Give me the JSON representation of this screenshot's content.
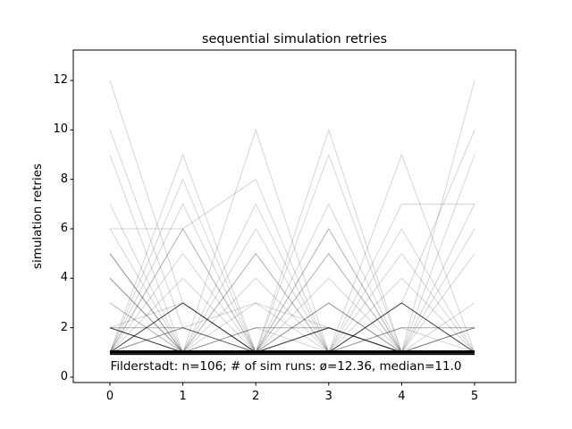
{
  "figure": {
    "title": "sequential simulation retries",
    "y_axis_label": "simulation retries",
    "annotation": "Filderstadt: n=106; # of sim runs: ø=12.36, median=11.0"
  },
  "chart_data": {
    "type": "line",
    "title": "sequential simulation retries",
    "xlabel": "",
    "ylabel": "simulation retries",
    "annotation": "Filderstadt: n=106; # of sim runs: ø=12.36, median=11.0",
    "stats": {
      "place": "Filderstadt",
      "n": 106,
      "mean_sim_runs": 12.36,
      "median_sim_runs": 11.0
    },
    "x": [
      0,
      1,
      2,
      3,
      4,
      5
    ],
    "xticks": [
      0,
      1,
      2,
      3,
      4,
      5
    ],
    "xtick_labels": [
      "0",
      "1",
      "2",
      "3",
      "4",
      "5"
    ],
    "yticks": [
      0,
      2,
      4,
      6,
      8,
      10,
      12
    ],
    "ytick_labels": [
      "0",
      "2",
      "4",
      "6",
      "8",
      "10",
      "12"
    ],
    "xlim": [
      -0.5,
      5.56
    ],
    "ylim": [
      -0.22,
      13.23
    ],
    "grid": false,
    "legend": false,
    "line_color": "#000000",
    "alpha_per_run": 0.16,
    "runs": [
      {
        "values": [
          1,
          1,
          1,
          1,
          1,
          1
        ],
        "count": 20
      },
      {
        "values": [
          2,
          1,
          1,
          1,
          1,
          1
        ],
        "count": 7
      },
      {
        "values": [
          1,
          3,
          1,
          1,
          1,
          1
        ],
        "count": 6
      },
      {
        "values": [
          1,
          1,
          1,
          2,
          1,
          1
        ],
        "count": 6
      },
      {
        "values": [
          1,
          1,
          1,
          1,
          3,
          1
        ],
        "count": 6
      },
      {
        "values": [
          1,
          2,
          1,
          1,
          1,
          1
        ],
        "count": 2
      },
      {
        "values": [
          2,
          2,
          1,
          1,
          1,
          1
        ],
        "count": 2
      },
      {
        "values": [
          1,
          1,
          1,
          1,
          2,
          2
        ],
        "count": 2
      },
      {
        "values": [
          3,
          1,
          1,
          1,
          1,
          1
        ],
        "count": 2
      },
      {
        "values": [
          4,
          1,
          1,
          1,
          1,
          1
        ],
        "count": 2
      },
      {
        "values": [
          5,
          1,
          1,
          1,
          1,
          1
        ],
        "count": 2
      },
      {
        "values": [
          1,
          1,
          1,
          1,
          1,
          2
        ],
        "count": 2
      },
      {
        "values": [
          1,
          1,
          2,
          2,
          1,
          1
        ],
        "count": 2
      },
      {
        "values": [
          1,
          1,
          1,
          5,
          1,
          1
        ],
        "count": 2
      },
      {
        "values": [
          1,
          5,
          1,
          1,
          1,
          1
        ],
        "count": 1
      },
      {
        "values": [
          1,
          1,
          5,
          1,
          1,
          1
        ],
        "count": 1
      },
      {
        "values": [
          1,
          1,
          1,
          1,
          5,
          1
        ],
        "count": 1
      },
      {
        "values": [
          6,
          1,
          1,
          1,
          1,
          1
        ],
        "count": 1
      },
      {
        "values": [
          1,
          1,
          6,
          1,
          1,
          1
        ],
        "count": 1
      },
      {
        "values": [
          1,
          6,
          1,
          1,
          1,
          1
        ],
        "count": 1
      },
      {
        "values": [
          1,
          1,
          1,
          6,
          1,
          1
        ],
        "count": 1
      },
      {
        "values": [
          1,
          1,
          1,
          1,
          6,
          1
        ],
        "count": 1
      },
      {
        "values": [
          1,
          1,
          1,
          1,
          1,
          6
        ],
        "count": 1
      },
      {
        "values": [
          1,
          9,
          1,
          1,
          1,
          1
        ],
        "count": 1
      },
      {
        "values": [
          1,
          1,
          10,
          1,
          1,
          1
        ],
        "count": 1
      },
      {
        "values": [
          1,
          1,
          1,
          10,
          1,
          1
        ],
        "count": 1
      },
      {
        "values": [
          1,
          1,
          1,
          9,
          1,
          1
        ],
        "count": 1
      },
      {
        "values": [
          1,
          1,
          1,
          1,
          9,
          1
        ],
        "count": 1
      },
      {
        "values": [
          1,
          8,
          1,
          1,
          1,
          1
        ],
        "count": 1
      },
      {
        "values": [
          1,
          6,
          8,
          1,
          1,
          1
        ],
        "count": 1
      },
      {
        "values": [
          12,
          3,
          1,
          1,
          1,
          1
        ],
        "count": 1
      },
      {
        "values": [
          10,
          2,
          1,
          1,
          1,
          1
        ],
        "count": 1
      },
      {
        "values": [
          9,
          1,
          1,
          1,
          1,
          1
        ],
        "count": 1
      },
      {
        "values": [
          1,
          1,
          1,
          1,
          7,
          7
        ],
        "count": 1
      },
      {
        "values": [
          1,
          1,
          1,
          1,
          1,
          12
        ],
        "count": 1
      },
      {
        "values": [
          1,
          1,
          1,
          1,
          3,
          10
        ],
        "count": 1
      },
      {
        "values": [
          1,
          1,
          1,
          1,
          1,
          9
        ],
        "count": 1
      },
      {
        "values": [
          1,
          4,
          1,
          6,
          1,
          7
        ],
        "count": 1
      },
      {
        "values": [
          1,
          1,
          3,
          1,
          1,
          1
        ],
        "count": 1
      },
      {
        "values": [
          1,
          1,
          1,
          3,
          1,
          1
        ],
        "count": 1
      },
      {
        "values": [
          1,
          1,
          4,
          1,
          1,
          1
        ],
        "count": 1
      },
      {
        "values": [
          1,
          1,
          1,
          4,
          1,
          1
        ],
        "count": 1
      },
      {
        "values": [
          1,
          1,
          1,
          1,
          4,
          1
        ],
        "count": 1
      },
      {
        "values": [
          1,
          7,
          1,
          1,
          1,
          1
        ],
        "count": 1
      },
      {
        "values": [
          7,
          1,
          1,
          1,
          1,
          1
        ],
        "count": 1
      },
      {
        "values": [
          1,
          1,
          7,
          1,
          1,
          1
        ],
        "count": 1
      },
      {
        "values": [
          1,
          1,
          1,
          7,
          1,
          1
        ],
        "count": 1
      },
      {
        "values": [
          1,
          1,
          1,
          1,
          1,
          5
        ],
        "count": 1
      },
      {
        "values": [
          6,
          6,
          1,
          1,
          1,
          1
        ],
        "count": 1
      },
      {
        "values": [
          2,
          3,
          1,
          2,
          1,
          1
        ],
        "count": 1
      },
      {
        "values": [
          1,
          2,
          3,
          2,
          1,
          2
        ],
        "count": 1
      },
      {
        "values": [
          4,
          1,
          2,
          1,
          3,
          1
        ],
        "count": 1
      },
      {
        "values": [
          1,
          3,
          1,
          3,
          1,
          1
        ],
        "count": 1
      },
      {
        "values": [
          1,
          1,
          1,
          3,
          1,
          3
        ],
        "count": 1
      },
      {
        "values": [
          2,
          1,
          1,
          1,
          1,
          2
        ],
        "count": 1
      },
      {
        "values": [
          5,
          1,
          1,
          2,
          1,
          1
        ],
        "count": 1
      },
      {
        "values": [
          1,
          1,
          5,
          1,
          2,
          1
        ],
        "count": 1
      }
    ]
  }
}
